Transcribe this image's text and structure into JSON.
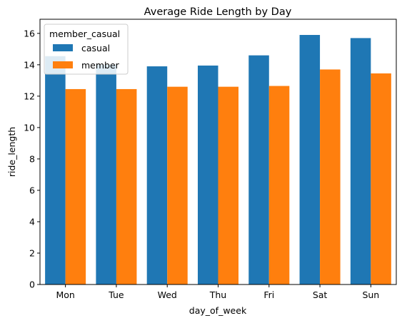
{
  "chart_data": {
    "type": "bar",
    "title": "Average Ride Length by Day",
    "xlabel": "day_of_week",
    "ylabel": "ride_length",
    "categories": [
      "Mon",
      "Tue",
      "Wed",
      "Thu",
      "Fri",
      "Sat",
      "Sun"
    ],
    "series": [
      {
        "name": "casual",
        "color": "#1f77b4",
        "values": [
          14.55,
          14.0,
          13.9,
          13.95,
          14.6,
          15.9,
          15.7
        ]
      },
      {
        "name": "member",
        "color": "#ff7f0e",
        "values": [
          12.45,
          12.45,
          12.6,
          12.6,
          12.65,
          13.7,
          13.45
        ]
      }
    ],
    "ylim": [
      0,
      16.9
    ],
    "yticks": [
      0,
      2,
      4,
      6,
      8,
      10,
      12,
      14,
      16
    ],
    "grid": false,
    "legend": {
      "title": "member_casual",
      "position": "top-left"
    }
  }
}
